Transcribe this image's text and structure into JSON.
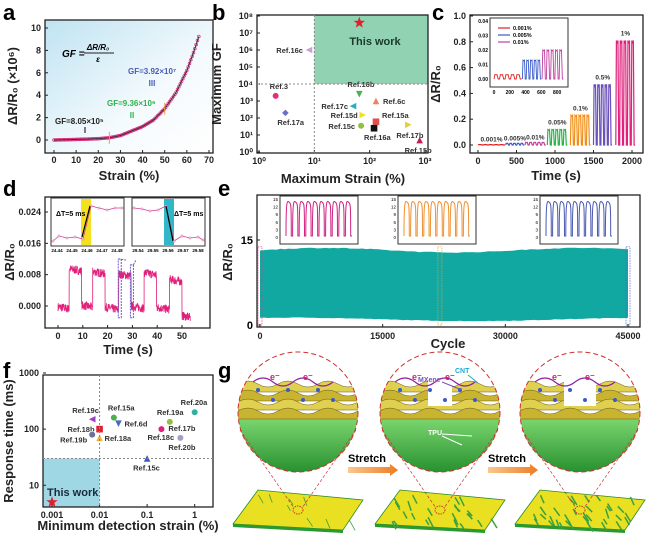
{
  "panel_letters": [
    "a",
    "b",
    "c",
    "d",
    "e",
    "f",
    "g"
  ],
  "chart_data": [
    {
      "panel": "a",
      "type": "line",
      "xlabel": "Strain (%)",
      "ylabel": "ΔR/R₀ (×10⁶)",
      "xlim": [
        0,
        70
      ],
      "ylim": [
        0,
        10
      ],
      "xticks": [
        "0",
        "10",
        "20",
        "30",
        "40",
        "50",
        "60",
        "70"
      ],
      "yticks": [
        "0",
        "2",
        "4",
        "6",
        "8",
        "10"
      ],
      "x": [
        0,
        5,
        10,
        15,
        20,
        25,
        30,
        35,
        40,
        45,
        50,
        55,
        60,
        63,
        66
      ],
      "y": [
        0,
        0.02,
        0.05,
        0.08,
        0.12,
        0.2,
        0.4,
        0.8,
        1.2,
        1.8,
        2.8,
        4.2,
        6.2,
        7.8,
        9.6
      ],
      "formula": {
        "lhs": "GF =",
        "num": "ΔR/R₀",
        "den": "ε"
      },
      "annotations": [
        {
          "text": "GF=8.05×10⁵",
          "region": "I",
          "color": "#222222"
        },
        {
          "text": "GF=9.36×10⁶",
          "region": "II",
          "color": "#2db34a"
        },
        {
          "text": "GF=3.92×10⁷",
          "region": "III",
          "color": "#4a5bb5"
        }
      ],
      "series_color": "#e0307a",
      "fit_color": "#3a2b4a",
      "grid": false
    },
    {
      "panel": "b",
      "type": "scatter",
      "xlabel": "Maximum Strain (%)",
      "ylabel": "Maximum GF",
      "xscale": "log",
      "yscale": "log",
      "xlim": [
        1,
        1000
      ],
      "ylim": [
        1,
        100000000
      ],
      "xticks": [
        "10⁰",
        "10¹",
        "10²",
        "10³"
      ],
      "yticks": [
        "10⁰",
        "10¹",
        "10²",
        "10³",
        "10⁴",
        "10⁵",
        "10⁶",
        "10⁷",
        "10⁸"
      ],
      "highlight_label": "This work",
      "highlight_color": "#7ccaa4",
      "points": [
        {
          "label": "This work",
          "x": 65,
          "y": 40000000,
          "color": "#e02030",
          "marker": "star"
        },
        {
          "label": "Ref.16c",
          "x": 8,
          "y": 1000000,
          "color": "#c9a0d8",
          "marker": "tri-left"
        },
        {
          "label": "Ref.3",
          "x": 2,
          "y": 2000,
          "color": "#e0307a",
          "marker": "circle"
        },
        {
          "label": "Ref.17a",
          "x": 3,
          "y": 200,
          "color": "#6a70c8",
          "marker": "diamond"
        },
        {
          "label": "Ref.16b",
          "x": 65,
          "y": 2500,
          "color": "#4caf50",
          "marker": "tri-down"
        },
        {
          "label": "Ref.17c",
          "x": 50,
          "y": 500,
          "color": "#20b0c8",
          "marker": "tri-left"
        },
        {
          "label": "Ref.6c",
          "x": 130,
          "y": 1000,
          "color": "#f08060",
          "marker": "tri-up"
        },
        {
          "label": "Ref.15d",
          "x": 75,
          "y": 150,
          "color": "#f0e020",
          "marker": "tri-right"
        },
        {
          "label": "Ref.15a",
          "x": 130,
          "y": 60,
          "color": "#e05050",
          "marker": "square"
        },
        {
          "label": "Ref.15c",
          "x": 70,
          "y": 35,
          "color": "#90c040",
          "marker": "hexagon"
        },
        {
          "label": "Ref.16a",
          "x": 120,
          "y": 25,
          "color": "#111111",
          "marker": "square"
        },
        {
          "label": "Ref.17b",
          "x": 500,
          "y": 40,
          "color": "#e0d040",
          "marker": "tri-right"
        },
        {
          "label": "Ref.15b",
          "x": 800,
          "y": 5,
          "color": "#c02050",
          "marker": "tri-up"
        }
      ]
    },
    {
      "panel": "c",
      "type": "line",
      "xlabel": "Time (s)",
      "ylabel": "ΔR/R₀",
      "xlim": [
        0,
        2000
      ],
      "ylim": [
        0,
        1.0
      ],
      "xticks": [
        "0",
        "500",
        "1000",
        "1500",
        "2000"
      ],
      "yticks": [
        "0.0",
        "0.2",
        "0.4",
        "0.6",
        "0.8",
        "1.0"
      ],
      "series": [
        {
          "name": "0.001%",
          "start": 0,
          "end": 350,
          "amplitude": 0.003,
          "color": "#e02020"
        },
        {
          "name": "0.005%",
          "start": 360,
          "end": 600,
          "amplitude": 0.013,
          "color": "#3a5bc8"
        },
        {
          "name": "0.01%",
          "start": 610,
          "end": 880,
          "amplitude": 0.02,
          "color": "#c040a0"
        },
        {
          "name": "0.05%",
          "start": 900,
          "end": 1160,
          "amplitude": 0.12,
          "color": "#2db34a"
        },
        {
          "name": "0.1%",
          "start": 1200,
          "end": 1460,
          "amplitude": 0.23,
          "color": "#f0901a"
        },
        {
          "name": "0.5%",
          "start": 1500,
          "end": 1740,
          "amplitude": 0.47,
          "color": "#6a50b8"
        },
        {
          "name": "1%",
          "start": 1790,
          "end": 2040,
          "amplitude": 0.81,
          "color": "#e0207a"
        }
      ],
      "inset": {
        "xlim": [
          0,
          900
        ],
        "ylim": [
          0,
          0.04
        ],
        "xticks": [
          "0",
          "200",
          "400",
          "600",
          "800"
        ],
        "yticks": [
          "0.00",
          "0.01",
          "0.02",
          "0.03",
          "0.04"
        ],
        "legend": [
          "0.001%",
          "0.005%",
          "0.01%"
        ]
      }
    },
    {
      "panel": "d",
      "type": "line",
      "xlabel": "Time (s)",
      "ylabel": "ΔR/R₀",
      "xlim": [
        -3,
        55
      ],
      "ylim": [
        -0.0056,
        0.0277
      ],
      "xticks": [
        "0",
        "10",
        "20",
        "30",
        "40",
        "50"
      ],
      "yticks": [
        "0.000",
        "0.008",
        "0.016",
        "0.024"
      ],
      "high_segments": [
        [
          4.5,
          9.5,
          0.0095
        ],
        [
          14,
          19,
          0.0088
        ],
        [
          24.5,
          29.5,
          0.0082
        ],
        [
          34.7,
          39.7,
          0.0085
        ],
        [
          45,
          50,
          0.0068
        ]
      ],
      "low_segments": [
        [
          0,
          4.5,
          -0.0002
        ],
        [
          9.5,
          14,
          0.0002
        ],
        [
          19,
          24.5,
          -0.0003
        ],
        [
          29.5,
          34.7,
          0.0
        ],
        [
          39.7,
          45,
          -0.0003
        ],
        [
          50,
          53.5,
          -0.0025
        ]
      ],
      "color": "#e0207a",
      "insets": [
        {
          "label": "ΔT=5 ms",
          "xticks": [
            "24.44",
            "24.45",
            "24.46",
            "24.47",
            "24.48"
          ],
          "band_color": "#f5e020"
        },
        {
          "label": "ΔT=5 ms",
          "xticks": [
            "29.54",
            "29.55",
            "29.56",
            "29.57",
            "29.58"
          ],
          "band_color": "#30b8c8"
        }
      ]
    },
    {
      "panel": "e",
      "type": "area",
      "xlabel": "Cycle",
      "ylabel": "ΔR/R₀",
      "xlim": [
        0,
        45000
      ],
      "ylim": [
        0,
        16.5
      ],
      "xticks": [
        "0",
        "15000",
        "30000",
        "45000"
      ],
      "yticks": [
        "0",
        "15"
      ],
      "band": {
        "upper": 13.5,
        "lower": 1.0
      },
      "color": "#10a8a0",
      "insets": [
        {
          "yticks": [
            "0",
            "3",
            "6",
            "9",
            "12",
            "15"
          ],
          "color": "#d02080",
          "cycles": 10
        },
        {
          "yticks": [
            "0",
            "3",
            "6",
            "9",
            "12",
            "15"
          ],
          "color": "#f09030",
          "cycles": 10
        },
        {
          "yticks": [
            "3",
            "3",
            "6",
            "9",
            "12",
            "15"
          ],
          "color": "#4a58b0",
          "cycles": 10
        }
      ]
    },
    {
      "panel": "f",
      "type": "scatter",
      "xlabel": "Minimum detection strain (%)",
      "ylabel": "Response time (ms)",
      "xscale": "log",
      "yscale": "log",
      "xlim": [
        0.001,
        2
      ],
      "ylim": [
        4.1,
        1000
      ],
      "xticks": [
        "0.001",
        "0.01",
        "0.1",
        "1"
      ],
      "yticks": [
        "10",
        "100",
        "1000"
      ],
      "highlight_label": "This work",
      "highlight_color": "#8fd0e0",
      "points": [
        {
          "label": "This work",
          "x": 0.001,
          "y": 5,
          "color": "#e02030",
          "marker": "star"
        },
        {
          "label": "Ref.19c",
          "x": 0.007,
          "y": 150,
          "color": "#a040c0",
          "marker": "tri-left"
        },
        {
          "label": "Ref.15a",
          "x": 0.02,
          "y": 160,
          "color": "#4caf50",
          "marker": "hexagon"
        },
        {
          "label": "Ref.6d",
          "x": 0.025,
          "y": 125,
          "color": "#4a6ac0",
          "marker": "tri-down"
        },
        {
          "label": "Ref.18b",
          "x": 0.01,
          "y": 100,
          "color": "#e02030",
          "marker": "square"
        },
        {
          "label": "Ref.19b",
          "x": 0.007,
          "y": 80,
          "color": "#6a70a0",
          "marker": "circle"
        },
        {
          "label": "Ref.18a",
          "x": 0.01,
          "y": 70,
          "color": "#f0b040",
          "marker": "tri-up"
        },
        {
          "label": "Ref.19a",
          "x": 0.3,
          "y": 135,
          "color": "#90c040",
          "marker": "circle"
        },
        {
          "label": "Ref.20a",
          "x": 1,
          "y": 200,
          "color": "#30b0a0",
          "marker": "circle"
        },
        {
          "label": "Ref.18c",
          "x": 0.2,
          "y": 100,
          "color": "#e0207a",
          "marker": "circle"
        },
        {
          "label": "Ref.17b",
          "x": 0.5,
          "y": 70,
          "color": "#a0a0c0",
          "marker": "circle"
        },
        {
          "label": "Ref.20b",
          "x": 0.5,
          "y": 70,
          "color": "#a0a0c0",
          "marker": "circle"
        },
        {
          "label": "Ref.15c",
          "x": 0.1,
          "y": 30,
          "color": "#3a5bc8",
          "marker": "tri-up"
        }
      ]
    }
  ],
  "schematic": {
    "arrow_labels": [
      "Stretch",
      "Stretch"
    ],
    "component_labels": {
      "cnt": "CNT",
      "mxene": "MXene",
      "tpu": "TPU"
    },
    "electron": "e⁻"
  }
}
